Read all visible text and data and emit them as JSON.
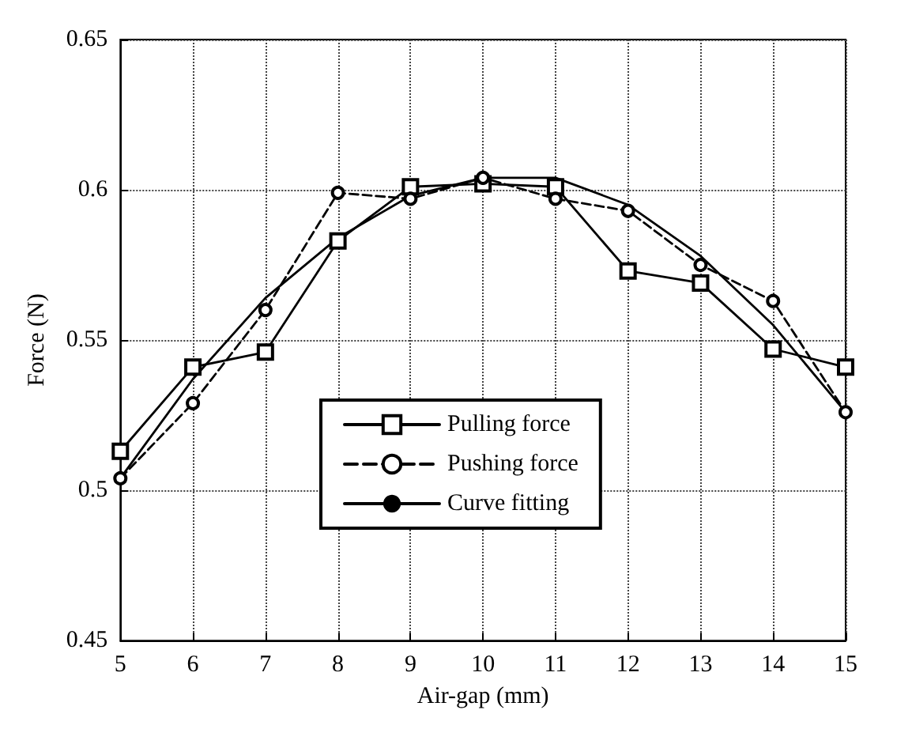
{
  "chart_data": {
    "type": "line",
    "xlabel": "Air-gap (mm)",
    "ylabel": "Force (N)",
    "x": [
      5,
      6,
      7,
      8,
      9,
      10,
      11,
      12,
      13,
      14,
      15
    ],
    "xlim": [
      5,
      15
    ],
    "xticks": [
      5,
      6,
      7,
      8,
      9,
      10,
      11,
      12,
      13,
      14,
      15
    ],
    "ylim": [
      0.45,
      0.65
    ],
    "yticks": [
      0.45,
      0.5,
      0.55,
      0.6,
      0.65
    ],
    "grid": true,
    "legend": "center",
    "series": [
      {
        "name": "Pulling force",
        "color": "#000000",
        "marker": "square",
        "line_style": "solid",
        "values": [
          0.513,
          0.541,
          0.546,
          0.583,
          0.601,
          0.602,
          0.601,
          0.573,
          0.569,
          0.547,
          0.541
        ]
      },
      {
        "name": "Pushing force",
        "color": "#000000",
        "marker": "circle",
        "line_style": "dashed",
        "values": [
          0.504,
          0.529,
          0.56,
          0.599,
          0.597,
          0.604,
          0.597,
          0.593,
          0.575,
          0.563,
          0.526
        ]
      },
      {
        "name": "Curve fitting",
        "color": "#000000",
        "marker": "none",
        "line_style": "solid",
        "values": [
          0.504,
          0.537,
          0.564,
          0.584,
          0.598,
          0.604,
          0.604,
          0.595,
          0.578,
          0.555,
          0.526
        ]
      }
    ]
  }
}
